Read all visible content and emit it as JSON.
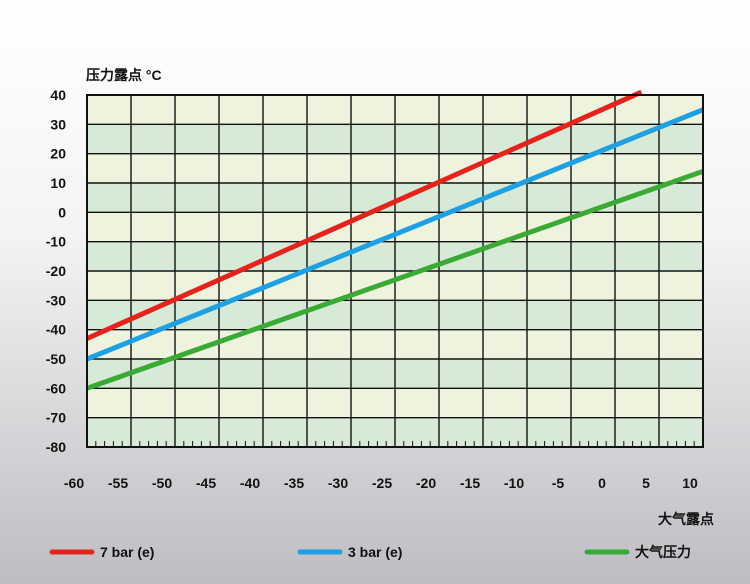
{
  "chart_data": {
    "type": "line",
    "ylabel": "压力露点 °C",
    "xlabel": "大气露点",
    "xlim": [
      -60,
      10
    ],
    "ylim": [
      -80,
      40
    ],
    "x_ticks": [
      -60,
      -55,
      -50,
      -45,
      -40,
      -35,
      -30,
      -25,
      -20,
      -15,
      -10,
      -5,
      0,
      5,
      10
    ],
    "y_ticks": [
      40,
      30,
      20,
      10,
      0,
      -10,
      -20,
      -30,
      -40,
      -50,
      -60,
      -70,
      -80
    ],
    "grid": true,
    "legend_position": "bottom",
    "series": [
      {
        "name": "7 bar (e)",
        "color": "#e3231c",
        "x": [
          -60,
          3
        ],
        "y": [
          -43,
          41
        ]
      },
      {
        "name": "3 bar (e)",
        "color": "#1fa0e2",
        "x": [
          -60,
          10
        ],
        "y": [
          -50,
          35
        ]
      },
      {
        "name": "大气压力",
        "color": "#3aaa35",
        "x": [
          -60,
          10
        ],
        "y": [
          -60,
          14
        ]
      }
    ]
  }
}
